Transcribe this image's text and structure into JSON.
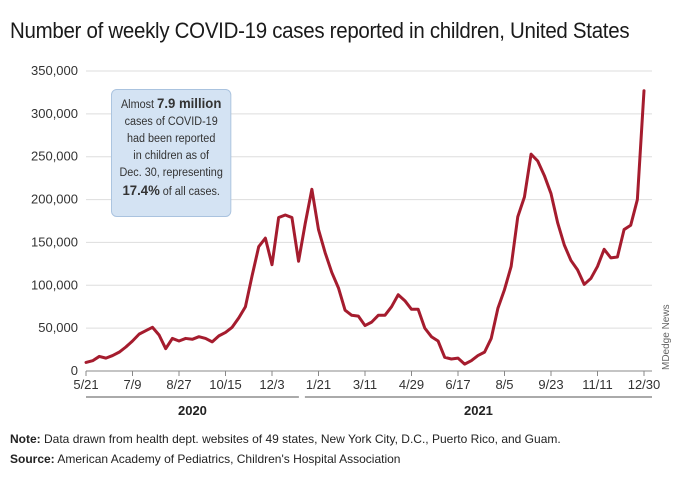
{
  "title": "Number of weekly COVID-19 cases reported in children, United States",
  "callout": {
    "line1_pre": "Almost ",
    "line1_bold": "7.9 million",
    "line2": "cases of COVID-19",
    "line3": "had been reported",
    "line4": "in children as of",
    "line5": "Dec. 30, representing",
    "line6_bold": "17.4%",
    "line6_post": " of all cases."
  },
  "credit": "MDedge News",
  "note": {
    "label": "Note:",
    "text": " Data drawn from health dept. websites of 49 states, New York City, D.C., Puerto Rico, and Guam."
  },
  "source": {
    "label": "Source:",
    "text": " American Academy of Pediatrics, Children's Hospital Association"
  },
  "colors": {
    "line": "#a51c2e",
    "grid": "#dddddd",
    "axis": "#888888",
    "callout_fill": "#d4e3f3"
  },
  "chart_data": {
    "type": "line",
    "title": "Number of weekly COVID-19 cases reported in children, United States",
    "xlabel": "",
    "ylabel": "",
    "ylim": [
      0,
      350000
    ],
    "yticks": [
      0,
      50000,
      100000,
      150000,
      200000,
      250000,
      300000,
      350000
    ],
    "ytick_labels": [
      "0",
      "50,000",
      "100,000",
      "150,000",
      "200,000",
      "250,000",
      "300,000",
      "350,000"
    ],
    "grid": true,
    "legend": "none",
    "periods": [
      {
        "label": "2020",
        "categories": [
          "5/21",
          "7/9",
          "8/27",
          "10/15",
          "12/3"
        ]
      },
      {
        "label": "2021",
        "categories": [
          "1/21",
          "3/11",
          "4/29",
          "6/17",
          "8/5",
          "9/23",
          "11/11",
          "12/30"
        ]
      }
    ],
    "x_tick_labels": [
      "5/21",
      "7/9",
      "8/27",
      "10/15",
      "12/3",
      "1/21",
      "3/11",
      "4/29",
      "6/17",
      "8/5",
      "9/23",
      "11/11",
      "12/30"
    ],
    "series": [
      {
        "values": [
          10000,
          12000,
          17000,
          15000,
          18000,
          22000,
          28000,
          35000,
          43000,
          47000,
          51000,
          42000,
          26000,
          38000,
          35000,
          38000,
          37000,
          40000,
          38000,
          34000,
          41000,
          45000,
          51000,
          62000,
          75000,
          111000,
          145000,
          155000,
          124000,
          179000,
          182000,
          179000,
          128000,
          172000,
          212000,
          165000,
          138000,
          115000,
          97000,
          71000,
          65000,
          64000,
          53000,
          57000,
          65000,
          65000,
          75000,
          89000,
          82000,
          72000,
          72000,
          50000,
          40000,
          35000,
          16000,
          14000,
          15000,
          8000,
          12000,
          18000,
          22000,
          38000,
          73000,
          95000,
          122000,
          180000,
          203000,
          253000,
          245000,
          228000,
          207000,
          173000,
          147000,
          129000,
          118000,
          101000,
          108000,
          122000,
          142000,
          132000,
          133000,
          165000,
          170000,
          200000,
          327000
        ]
      }
    ]
  }
}
